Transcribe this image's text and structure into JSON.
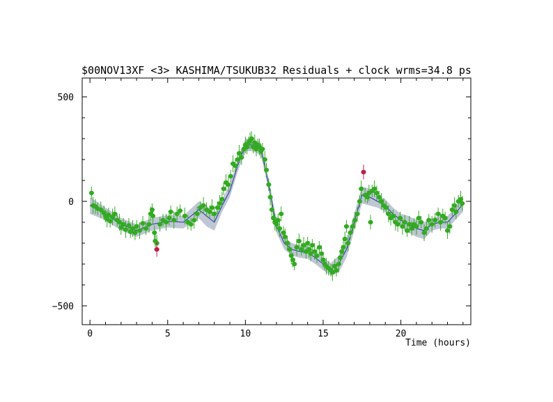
{
  "chart_data": {
    "type": "scatter",
    "title": "$00NOV13XF <3> KASHIMA/TSUKUB32 Residuals + clock wrms=34.8  ps",
    "xlabel": "Time (hours)",
    "ylabel": "",
    "xlim": [
      -0.5,
      24.5
    ],
    "ylim": [
      -590,
      590
    ],
    "xticks": [
      0,
      5,
      10,
      15,
      20
    ],
    "yticks": [
      500,
      0,
      -500
    ],
    "xtick_labels": [
      "0",
      "5",
      "10",
      "15",
      "20"
    ],
    "ytick_labels": [
      "500",
      "0",
      "−500"
    ],
    "grid": false,
    "legend": "none",
    "colors": {
      "good_points": "#33aa22",
      "outliers": "#bb2244",
      "model_line": "#2233aa",
      "model_band": "#bfc6d4",
      "frame": "#000000"
    },
    "model": {
      "name": "clock model",
      "x": [
        0,
        1,
        2,
        3,
        4,
        5,
        6,
        7,
        7.5,
        8,
        8.5,
        9,
        9.5,
        10,
        10.5,
        11,
        11.5,
        12,
        12.5,
        13,
        13.5,
        14,
        14.5,
        15,
        15.5,
        16,
        16.5,
        17,
        17.5,
        18,
        18.5,
        19,
        19.5,
        20,
        20.5,
        21,
        21.5,
        22,
        22.5,
        23,
        23.5,
        24
      ],
      "y": [
        -20,
        -60,
        -110,
        -140,
        -110,
        -95,
        -100,
        -40,
        -70,
        -100,
        -20,
        50,
        170,
        270,
        270,
        250,
        80,
        -120,
        -200,
        -230,
        -240,
        -245,
        -270,
        -300,
        -325,
        -300,
        -230,
        -100,
        30,
        20,
        0,
        -20,
        -60,
        -90,
        -110,
        -130,
        -140,
        -110,
        -100,
        -100,
        -60,
        -10
      ],
      "band_halfwidth": [
        40,
        30,
        30,
        30,
        30,
        30,
        30,
        40,
        50,
        40,
        30,
        30,
        30,
        30,
        30,
        30,
        30,
        30,
        30,
        30,
        30,
        30,
        30,
        30,
        30,
        40,
        40,
        40,
        40,
        40,
        30,
        30,
        30,
        30,
        40,
        40,
        40,
        30,
        30,
        30,
        30,
        40
      ]
    },
    "series": [
      {
        "name": "",
        "kind": "good",
        "points": [
          {
            "x": 0.1,
            "y": 40,
            "err": 30
          },
          {
            "x": 0.2,
            "y": -20,
            "err": 40
          },
          {
            "x": 0.35,
            "y": -25,
            "err": 35
          },
          {
            "x": 0.5,
            "y": -35,
            "err": 30
          },
          {
            "x": 0.7,
            "y": -40,
            "err": 40
          },
          {
            "x": 0.9,
            "y": -55,
            "err": 35
          },
          {
            "x": 1.0,
            "y": -70,
            "err": 30
          },
          {
            "x": 1.1,
            "y": -85,
            "err": 40
          },
          {
            "x": 1.2,
            "y": -65,
            "err": 35
          },
          {
            "x": 1.3,
            "y": -95,
            "err": 30
          },
          {
            "x": 1.45,
            "y": -75,
            "err": 40
          },
          {
            "x": 1.6,
            "y": -60,
            "err": 35
          },
          {
            "x": 1.75,
            "y": -90,
            "err": 30
          },
          {
            "x": 1.9,
            "y": -100,
            "err": 40
          },
          {
            "x": 2.0,
            "y": -125,
            "err": 35
          },
          {
            "x": 2.15,
            "y": -110,
            "err": 30
          },
          {
            "x": 2.3,
            "y": -135,
            "err": 40
          },
          {
            "x": 2.5,
            "y": -115,
            "err": 35
          },
          {
            "x": 2.6,
            "y": -145,
            "err": 30
          },
          {
            "x": 2.75,
            "y": -130,
            "err": 40
          },
          {
            "x": 2.9,
            "y": -150,
            "err": 35
          },
          {
            "x": 3.0,
            "y": -120,
            "err": 30
          },
          {
            "x": 3.2,
            "y": -140,
            "err": 40
          },
          {
            "x": 3.4,
            "y": -105,
            "err": 35
          },
          {
            "x": 3.6,
            "y": -130,
            "err": 30
          },
          {
            "x": 3.8,
            "y": -110,
            "err": 40
          },
          {
            "x": 3.9,
            "y": -60,
            "err": 35
          },
          {
            "x": 4.0,
            "y": -40,
            "err": 30
          },
          {
            "x": 4.05,
            "y": -70,
            "err": 40
          },
          {
            "x": 4.15,
            "y": -150,
            "err": 35
          },
          {
            "x": 4.2,
            "y": -190,
            "err": 30
          },
          {
            "x": 4.3,
            "y": -200,
            "err": 40
          },
          {
            "x": 4.5,
            "y": -110,
            "err": 35
          },
          {
            "x": 4.7,
            "y": -90,
            "err": 30
          },
          {
            "x": 4.9,
            "y": -100,
            "err": 40
          },
          {
            "x": 5.1,
            "y": -80,
            "err": 35
          },
          {
            "x": 5.2,
            "y": -50,
            "err": 30
          },
          {
            "x": 5.4,
            "y": -90,
            "err": 40
          },
          {
            "x": 5.6,
            "y": -60,
            "err": 35
          },
          {
            "x": 5.8,
            "y": -45,
            "err": 30
          },
          {
            "x": 6.1,
            "y": -70,
            "err": 40
          },
          {
            "x": 6.3,
            "y": -100,
            "err": 35
          },
          {
            "x": 6.5,
            "y": -110,
            "err": 30
          },
          {
            "x": 6.7,
            "y": -90,
            "err": 40
          },
          {
            "x": 6.9,
            "y": -60,
            "err": 35
          },
          {
            "x": 7.1,
            "y": -30,
            "err": 30
          },
          {
            "x": 7.3,
            "y": -20,
            "err": 40
          },
          {
            "x": 7.5,
            "y": -40,
            "err": 35
          },
          {
            "x": 7.7,
            "y": -50,
            "err": 30
          },
          {
            "x": 7.85,
            "y": -30,
            "err": 40
          },
          {
            "x": 8.0,
            "y": -60,
            "err": 35
          },
          {
            "x": 8.2,
            "y": -30,
            "err": 30
          },
          {
            "x": 8.35,
            "y": -10,
            "err": 40
          },
          {
            "x": 8.5,
            "y": 10,
            "err": 35
          },
          {
            "x": 8.6,
            "y": 60,
            "err": 30
          },
          {
            "x": 8.75,
            "y": 90,
            "err": 40
          },
          {
            "x": 8.9,
            "y": 80,
            "err": 35
          },
          {
            "x": 9.05,
            "y": 120,
            "err": 30
          },
          {
            "x": 9.2,
            "y": 180,
            "err": 40
          },
          {
            "x": 9.35,
            "y": 170,
            "err": 35
          },
          {
            "x": 9.5,
            "y": 200,
            "err": 30
          },
          {
            "x": 9.6,
            "y": 230,
            "err": 40
          },
          {
            "x": 9.75,
            "y": 210,
            "err": 35
          },
          {
            "x": 9.9,
            "y": 250,
            "err": 30
          },
          {
            "x": 10.0,
            "y": 270,
            "err": 40
          },
          {
            "x": 10.1,
            "y": 260,
            "err": 35
          },
          {
            "x": 10.2,
            "y": 280,
            "err": 30
          },
          {
            "x": 10.3,
            "y": 290,
            "err": 40
          },
          {
            "x": 10.4,
            "y": 300,
            "err": 35
          },
          {
            "x": 10.5,
            "y": 260,
            "err": 30
          },
          {
            "x": 10.6,
            "y": 280,
            "err": 40
          },
          {
            "x": 10.7,
            "y": 250,
            "err": 35
          },
          {
            "x": 10.8,
            "y": 270,
            "err": 30
          },
          {
            "x": 10.9,
            "y": 260,
            "err": 40
          },
          {
            "x": 11.0,
            "y": 240,
            "err": 35
          },
          {
            "x": 11.1,
            "y": 250,
            "err": 30
          },
          {
            "x": 11.25,
            "y": 200,
            "err": 40
          },
          {
            "x": 11.35,
            "y": 150,
            "err": 35
          },
          {
            "x": 11.5,
            "y": 80,
            "err": 30
          },
          {
            "x": 11.6,
            "y": 20,
            "err": 40
          },
          {
            "x": 11.7,
            "y": -40,
            "err": 35
          },
          {
            "x": 11.8,
            "y": -80,
            "err": 30
          },
          {
            "x": 11.9,
            "y": -100,
            "err": 40
          },
          {
            "x": 12.0,
            "y": -110,
            "err": 35
          },
          {
            "x": 12.1,
            "y": -90,
            "err": 30
          },
          {
            "x": 12.2,
            "y": -130,
            "err": 40
          },
          {
            "x": 12.3,
            "y": -60,
            "err": 35
          },
          {
            "x": 12.45,
            "y": -150,
            "err": 30
          },
          {
            "x": 12.55,
            "y": -170,
            "err": 40
          },
          {
            "x": 12.7,
            "y": -200,
            "err": 35
          },
          {
            "x": 12.85,
            "y": -230,
            "err": 30
          },
          {
            "x": 12.95,
            "y": -260,
            "err": 40
          },
          {
            "x": 13.05,
            "y": -280,
            "err": 35
          },
          {
            "x": 13.15,
            "y": -300,
            "err": 30
          },
          {
            "x": 13.3,
            "y": -220,
            "err": 40
          },
          {
            "x": 13.45,
            "y": -190,
            "err": 35
          },
          {
            "x": 13.6,
            "y": -230,
            "err": 30
          },
          {
            "x": 13.75,
            "y": -210,
            "err": 40
          },
          {
            "x": 13.9,
            "y": -240,
            "err": 35
          },
          {
            "x": 14.0,
            "y": -200,
            "err": 30
          },
          {
            "x": 14.1,
            "y": -230,
            "err": 40
          },
          {
            "x": 14.2,
            "y": -250,
            "err": 35
          },
          {
            "x": 14.3,
            "y": -210,
            "err": 30
          },
          {
            "x": 14.45,
            "y": -240,
            "err": 40
          },
          {
            "x": 14.6,
            "y": -260,
            "err": 35
          },
          {
            "x": 14.75,
            "y": -220,
            "err": 30
          },
          {
            "x": 14.9,
            "y": -250,
            "err": 40
          },
          {
            "x": 15.0,
            "y": -280,
            "err": 35
          },
          {
            "x": 15.1,
            "y": -300,
            "err": 30
          },
          {
            "x": 15.2,
            "y": -310,
            "err": 40
          },
          {
            "x": 15.35,
            "y": -320,
            "err": 35
          },
          {
            "x": 15.5,
            "y": -330,
            "err": 30
          },
          {
            "x": 15.6,
            "y": -340,
            "err": 40
          },
          {
            "x": 15.75,
            "y": -310,
            "err": 35
          },
          {
            "x": 15.85,
            "y": -330,
            "err": 30
          },
          {
            "x": 16.0,
            "y": -300,
            "err": 40
          },
          {
            "x": 16.1,
            "y": -270,
            "err": 35
          },
          {
            "x": 16.2,
            "y": -240,
            "err": 30
          },
          {
            "x": 16.3,
            "y": -220,
            "err": 40
          },
          {
            "x": 16.4,
            "y": -180,
            "err": 35
          },
          {
            "x": 16.5,
            "y": -120,
            "err": 30
          },
          {
            "x": 16.6,
            "y": -200,
            "err": 40
          },
          {
            "x": 16.75,
            "y": -150,
            "err": 35
          },
          {
            "x": 16.9,
            "y": -120,
            "err": 30
          },
          {
            "x": 17.05,
            "y": -90,
            "err": 40
          },
          {
            "x": 17.2,
            "y": -60,
            "err": 35
          },
          {
            "x": 17.35,
            "y": 0,
            "err": 30
          },
          {
            "x": 17.45,
            "y": 60,
            "err": 40
          },
          {
            "x": 17.7,
            "y": 30,
            "err": 35
          },
          {
            "x": 17.85,
            "y": 20,
            "err": 30
          },
          {
            "x": 17.95,
            "y": 40,
            "err": 40
          },
          {
            "x": 18.05,
            "y": -100,
            "err": 35
          },
          {
            "x": 18.15,
            "y": 50,
            "err": 30
          },
          {
            "x": 18.3,
            "y": 60,
            "err": 40
          },
          {
            "x": 18.45,
            "y": 40,
            "err": 35
          },
          {
            "x": 18.6,
            "y": 20,
            "err": 30
          },
          {
            "x": 18.75,
            "y": 0,
            "err": 40
          },
          {
            "x": 18.9,
            "y": -20,
            "err": 35
          },
          {
            "x": 19.05,
            "y": -30,
            "err": 30
          },
          {
            "x": 19.2,
            "y": -60,
            "err": 40
          },
          {
            "x": 19.35,
            "y": -80,
            "err": 35
          },
          {
            "x": 19.5,
            "y": -70,
            "err": 30
          },
          {
            "x": 19.65,
            "y": -100,
            "err": 40
          },
          {
            "x": 19.8,
            "y": -110,
            "err": 35
          },
          {
            "x": 19.95,
            "y": -80,
            "err": 30
          },
          {
            "x": 20.1,
            "y": -120,
            "err": 40
          },
          {
            "x": 20.25,
            "y": -100,
            "err": 35
          },
          {
            "x": 20.4,
            "y": -140,
            "err": 30
          },
          {
            "x": 20.55,
            "y": -110,
            "err": 40
          },
          {
            "x": 20.7,
            "y": -130,
            "err": 35
          },
          {
            "x": 20.85,
            "y": -110,
            "err": 30
          },
          {
            "x": 21.0,
            "y": -120,
            "err": 40
          },
          {
            "x": 21.15,
            "y": -80,
            "err": 35
          },
          {
            "x": 21.3,
            "y": -100,
            "err": 30
          },
          {
            "x": 21.5,
            "y": -150,
            "err": 40
          },
          {
            "x": 21.65,
            "y": -130,
            "err": 35
          },
          {
            "x": 21.8,
            "y": -90,
            "err": 30
          },
          {
            "x": 22.0,
            "y": -110,
            "err": 40
          },
          {
            "x": 22.2,
            "y": -90,
            "err": 35
          },
          {
            "x": 22.4,
            "y": -60,
            "err": 30
          },
          {
            "x": 22.55,
            "y": -100,
            "err": 40
          },
          {
            "x": 22.7,
            "y": -70,
            "err": 35
          },
          {
            "x": 22.85,
            "y": -80,
            "err": 30
          },
          {
            "x": 23.0,
            "y": -140,
            "err": 40
          },
          {
            "x": 23.15,
            "y": -120,
            "err": 35
          },
          {
            "x": 23.3,
            "y": -40,
            "err": 30
          },
          {
            "x": 23.45,
            "y": -20,
            "err": 40
          },
          {
            "x": 23.55,
            "y": -50,
            "err": 35
          },
          {
            "x": 23.7,
            "y": 0,
            "err": 30
          },
          {
            "x": 23.85,
            "y": 10,
            "err": 40
          },
          {
            "x": 23.95,
            "y": -10,
            "err": 35
          }
        ]
      },
      {
        "name": "",
        "kind": "outlier",
        "points": [
          {
            "x": 4.3,
            "y": -230,
            "err": 35
          },
          {
            "x": 17.6,
            "y": 140,
            "err": 35
          }
        ]
      }
    ]
  }
}
